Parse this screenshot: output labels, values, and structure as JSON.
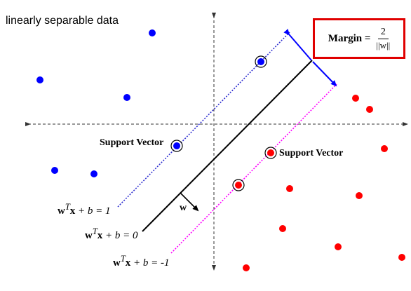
{
  "title": "linearly separable data",
  "margin": {
    "label": "Margin =",
    "numerator": "2",
    "denominator": "||w||",
    "box_color": "#e00000"
  },
  "support_vector_label": "Support Vector",
  "equations": {
    "upper": {
      "lhs": "w",
      "sup": "T",
      "x": "x",
      "rest": " + b = 1"
    },
    "middle": {
      "lhs": "w",
      "sup": "T",
      "x": "x",
      "rest": " + b = 0"
    },
    "lower": {
      "lhs": "w",
      "sup": "T",
      "x": "x",
      "rest": " + b = -1"
    }
  },
  "normal_vector_label": "w",
  "colors": {
    "class_blue": "#0000ff",
    "class_red": "#ff0000",
    "upper_margin_line": "#3030d0",
    "lower_margin_line": "#ff00ff",
    "decision_line": "#000000",
    "margin_arrow": "#0000ff",
    "axes": "#333333"
  }
}
